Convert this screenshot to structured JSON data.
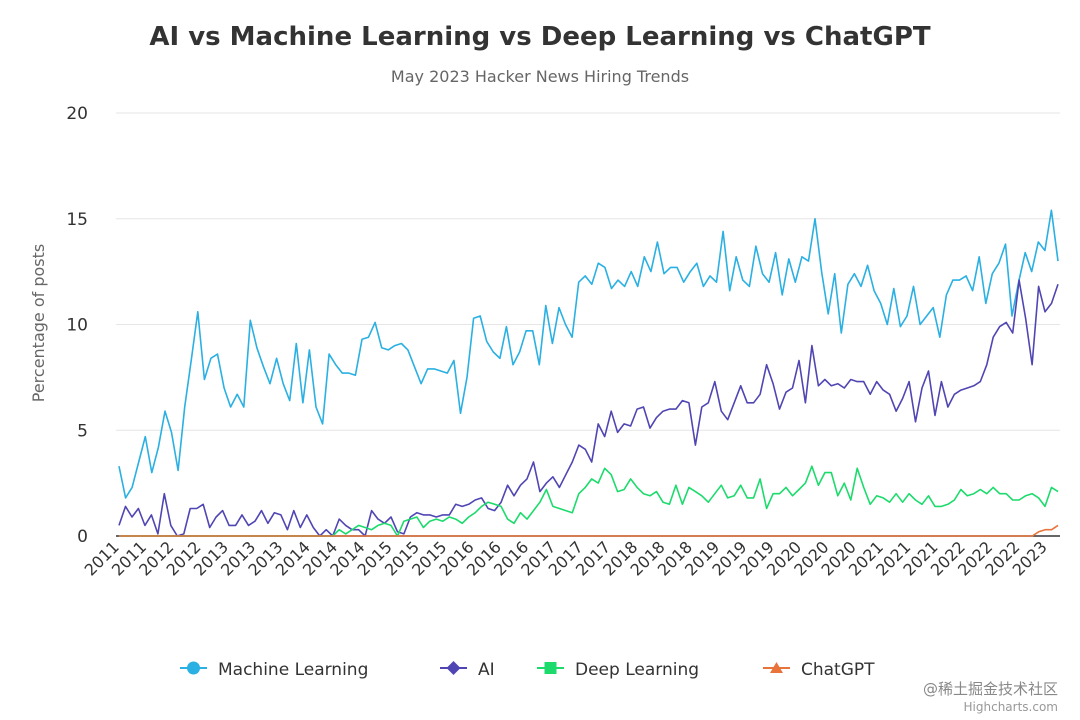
{
  "chart_data": {
    "type": "line",
    "title": "AI vs Machine Learning vs Deep Learning vs ChatGPT",
    "subtitle": "May 2023 Hacker News Hiring Trends",
    "ylabel": "Percentage of posts",
    "xlabel": "",
    "ylim": [
      0,
      20
    ],
    "yticks": [
      0,
      5,
      10,
      15,
      20
    ],
    "x_start": "2011-01",
    "x_end": "2023-05",
    "x_labels": [
      "2011",
      "2011",
      "2012",
      "2012",
      "2013",
      "2013",
      "2013",
      "2014",
      "2014",
      "2014",
      "2015",
      "2015",
      "2015",
      "2016",
      "2016",
      "2016",
      "2017",
      "2017",
      "2017",
      "2018",
      "2018",
      "2018",
      "2019",
      "2019",
      "2019",
      "2020",
      "2020",
      "2020",
      "2021",
      "2021",
      "2021",
      "2022",
      "2022",
      "2022",
      "2023"
    ],
    "series": [
      {
        "name": "Machine Learning",
        "color": "#2ab0e2",
        "marker": "circle",
        "values": [
          3.3,
          1.8,
          2.3,
          3.5,
          4.7,
          3.0,
          4.2,
          5.9,
          4.9,
          3.1,
          6.1,
          8.3,
          10.6,
          7.4,
          8.4,
          8.6,
          7.0,
          6.1,
          6.7,
          6.1,
          10.2,
          8.9,
          8.0,
          7.2,
          8.4,
          7.2,
          6.4,
          9.1,
          6.3,
          8.8,
          6.1,
          5.3,
          8.6,
          8.1,
          7.7,
          7.7,
          7.6,
          9.3,
          9.4,
          10.1,
          8.9,
          8.8,
          9.0,
          9.1,
          8.8,
          8.0,
          7.2,
          7.9,
          7.9,
          7.8,
          7.7,
          8.3,
          5.8,
          7.5,
          10.3,
          10.4,
          9.2,
          8.7,
          8.4,
          9.9,
          8.1,
          8.7,
          9.7,
          9.7,
          8.1,
          10.9,
          9.1,
          10.8,
          10.0,
          9.4,
          12.0,
          12.3,
          11.9,
          12.9,
          12.7,
          11.7,
          12.1,
          11.8,
          12.5,
          11.8,
          13.2,
          12.5,
          13.9,
          12.4,
          12.7,
          12.7,
          12.0,
          12.5,
          12.9,
          11.8,
          12.3,
          12.0,
          14.4,
          11.6,
          13.2,
          12.1,
          11.8,
          13.7,
          12.4,
          12.0,
          13.4,
          11.4,
          13.1,
          12.0,
          13.2,
          13.0,
          15.0,
          12.5,
          10.5,
          12.4,
          9.6,
          11.9,
          12.4,
          11.8,
          12.8,
          11.6,
          11.0,
          10.0,
          11.7,
          9.9,
          10.4,
          11.8,
          10.0,
          10.4,
          10.8,
          9.4,
          11.4,
          12.1,
          12.1,
          12.3,
          11.6,
          13.2,
          11.0,
          12.4,
          12.9,
          13.8,
          10.4,
          12.0,
          13.4,
          12.5,
          13.9,
          13.5,
          15.4,
          13.0
        ]
      },
      {
        "name": "AI",
        "color": "#5046b3",
        "marker": "diamond",
        "values": [
          0.5,
          1.4,
          0.9,
          1.3,
          0.5,
          1.0,
          0.1,
          2.0,
          0.5,
          0.0,
          0.1,
          1.3,
          1.3,
          1.5,
          0.4,
          0.9,
          1.2,
          0.5,
          0.5,
          1.0,
          0.5,
          0.7,
          1.2,
          0.6,
          1.1,
          1.0,
          0.3,
          1.2,
          0.4,
          1.0,
          0.4,
          0.0,
          0.3,
          0.0,
          0.8,
          0.5,
          0.3,
          0.3,
          0.0,
          1.2,
          0.8,
          0.6,
          0.9,
          0.2,
          0.1,
          0.9,
          1.1,
          1.0,
          1.0,
          0.9,
          1.0,
          1.0,
          1.5,
          1.4,
          1.5,
          1.7,
          1.8,
          1.3,
          1.2,
          1.6,
          2.4,
          1.9,
          2.4,
          2.7,
          3.5,
          2.1,
          2.5,
          2.8,
          2.3,
          2.9,
          3.5,
          4.3,
          4.1,
          3.5,
          5.3,
          4.7,
          5.9,
          4.9,
          5.3,
          5.2,
          6.0,
          6.1,
          5.1,
          5.6,
          5.9,
          6.0,
          6.0,
          6.4,
          6.3,
          4.3,
          6.1,
          6.3,
          7.3,
          5.9,
          5.5,
          6.3,
          7.1,
          6.3,
          6.3,
          6.7,
          8.1,
          7.2,
          6.0,
          6.8,
          7.0,
          8.3,
          6.3,
          9.0,
          7.1,
          7.4,
          7.1,
          7.2,
          7.0,
          7.4,
          7.3,
          7.3,
          6.7,
          7.3,
          6.9,
          6.7,
          5.9,
          6.5,
          7.3,
          5.4,
          7.0,
          7.8,
          5.7,
          7.3,
          6.1,
          6.7,
          6.9,
          7.0,
          7.1,
          7.3,
          8.1,
          9.4,
          9.9,
          10.1,
          9.6,
          12.1,
          10.3,
          8.1,
          11.8,
          10.6,
          11.0,
          11.9
        ]
      },
      {
        "name": "Deep Learning",
        "color": "#1cdb6c",
        "marker": "square",
        "values": [
          0,
          0,
          0,
          0,
          0,
          0,
          0,
          0,
          0,
          0,
          0,
          0,
          0,
          0,
          0,
          0,
          0,
          0,
          0,
          0,
          0,
          0,
          0,
          0,
          0,
          0,
          0,
          0,
          0,
          0,
          0,
          0,
          0,
          0,
          0.3,
          0.1,
          0.3,
          0.5,
          0.4,
          0.3,
          0.5,
          0.6,
          0.5,
          0.0,
          0.7,
          0.8,
          0.9,
          0.4,
          0.7,
          0.8,
          0.7,
          0.9,
          0.8,
          0.6,
          0.9,
          1.1,
          1.4,
          1.6,
          1.5,
          1.4,
          0.8,
          0.6,
          1.1,
          0.8,
          1.2,
          1.6,
          2.2,
          1.4,
          1.3,
          1.2,
          1.1,
          2.0,
          2.3,
          2.7,
          2.5,
          3.2,
          2.9,
          2.1,
          2.2,
          2.7,
          2.3,
          2.0,
          1.9,
          2.1,
          1.6,
          1.5,
          2.4,
          1.5,
          2.3,
          2.1,
          1.9,
          1.6,
          2.0,
          2.4,
          1.8,
          1.9,
          2.4,
          1.8,
          1.8,
          2.7,
          1.3,
          2.0,
          2.0,
          2.3,
          1.9,
          2.2,
          2.5,
          3.3,
          2.4,
          3.0,
          3.0,
          1.9,
          2.5,
          1.7,
          3.2,
          2.3,
          1.5,
          1.9,
          1.8,
          1.6,
          2.0,
          1.6,
          2.0,
          1.7,
          1.5,
          1.9,
          1.4,
          1.4,
          1.5,
          1.7,
          2.2,
          1.9,
          2.0,
          2.2,
          2.0,
          2.3,
          2.0,
          2.0,
          1.7,
          1.7,
          1.9,
          2.0,
          1.8,
          1.4,
          2.3,
          2.1
        ]
      },
      {
        "name": "ChatGPT",
        "color": "#e8743b",
        "marker": "triangle",
        "values": [
          0,
          0,
          0,
          0,
          0,
          0,
          0,
          0,
          0,
          0,
          0,
          0,
          0,
          0,
          0,
          0,
          0,
          0,
          0,
          0,
          0,
          0,
          0,
          0,
          0,
          0,
          0,
          0,
          0,
          0,
          0,
          0,
          0,
          0,
          0,
          0,
          0,
          0,
          0,
          0,
          0,
          0,
          0,
          0,
          0,
          0,
          0,
          0,
          0,
          0,
          0,
          0,
          0,
          0,
          0,
          0,
          0,
          0,
          0,
          0,
          0,
          0,
          0,
          0,
          0,
          0,
          0,
          0,
          0,
          0,
          0,
          0,
          0,
          0,
          0,
          0,
          0,
          0,
          0,
          0,
          0,
          0,
          0,
          0,
          0,
          0,
          0,
          0,
          0,
          0,
          0,
          0,
          0,
          0,
          0,
          0,
          0,
          0,
          0,
          0,
          0,
          0,
          0,
          0,
          0,
          0,
          0,
          0,
          0,
          0,
          0,
          0,
          0,
          0,
          0,
          0,
          0,
          0,
          0,
          0,
          0,
          0,
          0,
          0,
          0,
          0,
          0,
          0,
          0,
          0,
          0,
          0,
          0,
          0,
          0,
          0,
          0,
          0,
          0,
          0,
          0,
          0,
          0,
          0.2,
          0.3,
          0.3,
          0.5
        ]
      }
    ],
    "legend_position": "bottom"
  },
  "watermark": "@稀土掘金技术社区",
  "credits": "Highcharts.com"
}
